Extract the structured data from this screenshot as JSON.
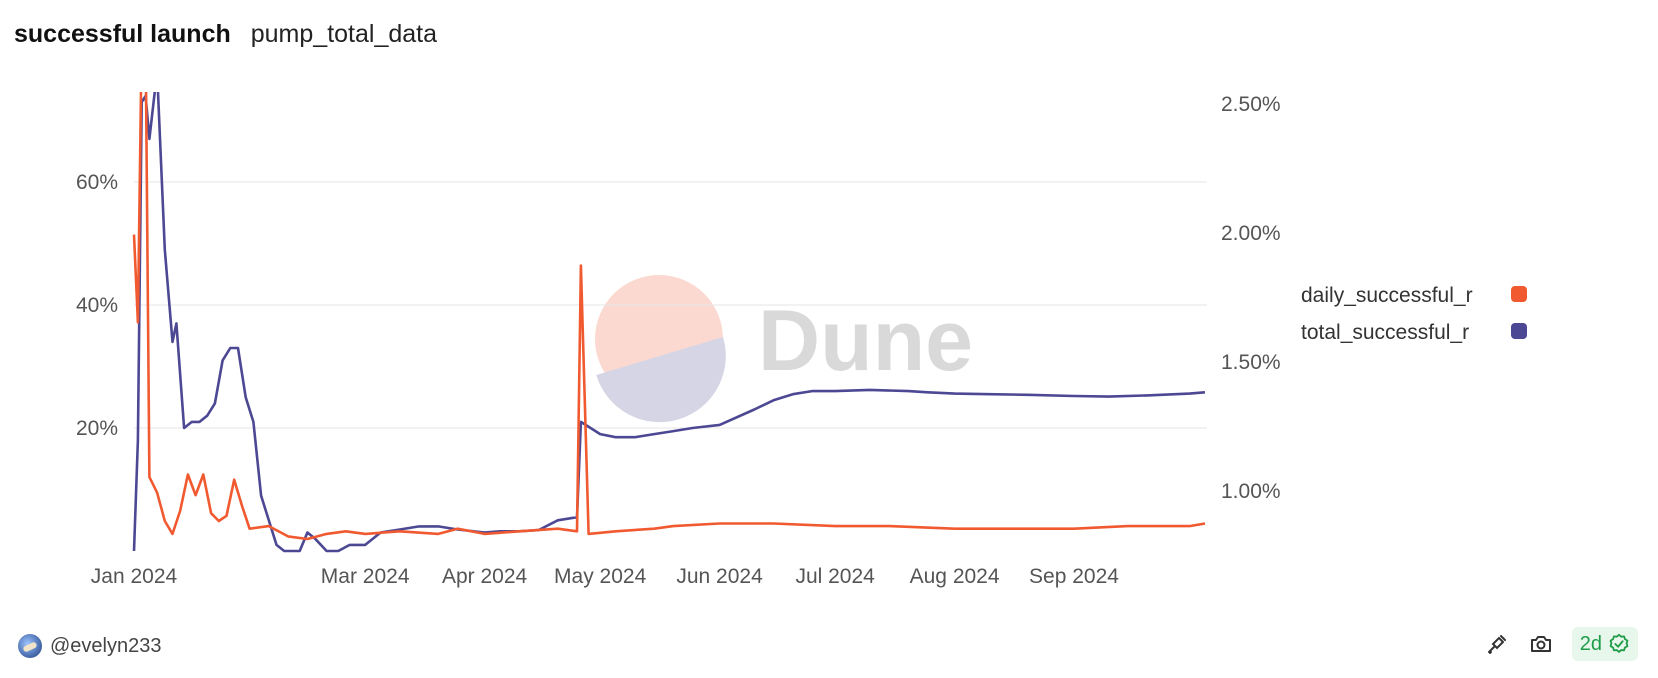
{
  "header": {
    "title": "successful launch",
    "subtitle": "pump_total_data"
  },
  "footer": {
    "username": "@evelyn233",
    "freshness_badge": "2d",
    "icons": [
      "chain-icon",
      "camera-icon",
      "verified-check-icon"
    ]
  },
  "watermark": "Dune",
  "chart_data": {
    "type": "line",
    "x_axis": {
      "type": "date",
      "range": [
        "2024-01-01",
        "2024-10-05"
      ],
      "tick_labels": [
        "Jan 2024",
        "Mar 2024",
        "Apr 2024",
        "May 2024",
        "Jun 2024",
        "Jul 2024",
        "Aug 2024",
        "Sep 2024"
      ],
      "tick_dates": [
        "2024-01-01",
        "2024-03-01",
        "2024-04-01",
        "2024-05-01",
        "2024-06-01",
        "2024-07-01",
        "2024-08-01",
        "2024-09-01"
      ]
    },
    "y_left": {
      "range": [
        0,
        0.7
      ],
      "ticks": [
        0.2,
        0.4,
        0.6
      ],
      "tick_labels": [
        "20%",
        "40%",
        "60%"
      ],
      "grid": true
    },
    "y_right": {
      "range": [
        0.0075,
        0.026
      ],
      "ticks": [
        0.01,
        0.015,
        0.02,
        0.025
      ],
      "tick_labels": [
        "1.00%",
        "1.50%",
        "2.00%",
        "2.50%"
      ]
    },
    "legend_position": "right",
    "series": [
      {
        "name": "daily_successful_r",
        "color": "#f15a30",
        "axis": "right",
        "points": [
          [
            "2024-01-01",
            0.0199
          ],
          [
            "2024-01-02",
            0.0165
          ],
          [
            "2024-01-03",
            0.0275
          ],
          [
            "2024-01-04",
            0.0275
          ],
          [
            "2024-01-05",
            0.0105
          ],
          [
            "2024-01-07",
            0.0099
          ],
          [
            "2024-01-09",
            0.0088
          ],
          [
            "2024-01-11",
            0.0083
          ],
          [
            "2024-01-13",
            0.0092
          ],
          [
            "2024-01-15",
            0.0106
          ],
          [
            "2024-01-17",
            0.0098
          ],
          [
            "2024-01-19",
            0.0106
          ],
          [
            "2024-01-21",
            0.0091
          ],
          [
            "2024-01-23",
            0.0088
          ],
          [
            "2024-01-25",
            0.009
          ],
          [
            "2024-01-27",
            0.0104
          ],
          [
            "2024-01-29",
            0.0094
          ],
          [
            "2024-01-31",
            0.0085
          ],
          [
            "2024-02-05",
            0.0086
          ],
          [
            "2024-02-10",
            0.0082
          ],
          [
            "2024-02-15",
            0.0081
          ],
          [
            "2024-02-20",
            0.0083
          ],
          [
            "2024-02-25",
            0.0084
          ],
          [
            "2024-03-01",
            0.0083
          ],
          [
            "2024-03-10",
            0.0084
          ],
          [
            "2024-03-20",
            0.0083
          ],
          [
            "2024-03-25",
            0.0085
          ],
          [
            "2024-04-01",
            0.0083
          ],
          [
            "2024-04-10",
            0.0084
          ],
          [
            "2024-04-20",
            0.0085
          ],
          [
            "2024-04-25",
            0.0084
          ],
          [
            "2024-04-26",
            0.0187
          ],
          [
            "2024-04-28",
            0.0083
          ],
          [
            "2024-05-05",
            0.0084
          ],
          [
            "2024-05-15",
            0.0085
          ],
          [
            "2024-05-20",
            0.0086
          ],
          [
            "2024-06-01",
            0.0087
          ],
          [
            "2024-06-15",
            0.0087
          ],
          [
            "2024-07-01",
            0.0086
          ],
          [
            "2024-07-15",
            0.0086
          ],
          [
            "2024-08-01",
            0.0085
          ],
          [
            "2024-08-15",
            0.0085
          ],
          [
            "2024-09-01",
            0.0085
          ],
          [
            "2024-09-15",
            0.0086
          ],
          [
            "2024-10-01",
            0.0086
          ],
          [
            "2024-10-05",
            0.0087
          ]
        ]
      },
      {
        "name": "total_successful_r",
        "color": "#4c4893",
        "axis": "left",
        "points": [
          [
            "2024-01-01",
            0.0
          ],
          [
            "2024-01-02",
            0.18
          ],
          [
            "2024-01-03",
            0.73
          ],
          [
            "2024-01-04",
            0.74
          ],
          [
            "2024-01-05",
            0.67
          ],
          [
            "2024-01-07",
            0.78
          ],
          [
            "2024-01-09",
            0.49
          ],
          [
            "2024-01-11",
            0.34
          ],
          [
            "2024-01-12",
            0.37
          ],
          [
            "2024-01-14",
            0.2
          ],
          [
            "2024-01-16",
            0.21
          ],
          [
            "2024-01-18",
            0.21
          ],
          [
            "2024-01-20",
            0.22
          ],
          [
            "2024-01-22",
            0.24
          ],
          [
            "2024-01-24",
            0.31
          ],
          [
            "2024-01-26",
            0.33
          ],
          [
            "2024-01-28",
            0.33
          ],
          [
            "2024-01-30",
            0.25
          ],
          [
            "2024-02-01",
            0.21
          ],
          [
            "2024-02-03",
            0.09
          ],
          [
            "2024-02-05",
            0.05
          ],
          [
            "2024-02-07",
            0.01
          ],
          [
            "2024-02-09",
            0.0
          ],
          [
            "2024-02-11",
            0.0
          ],
          [
            "2024-02-13",
            0.0
          ],
          [
            "2024-02-15",
            0.03
          ],
          [
            "2024-02-17",
            0.02
          ],
          [
            "2024-02-20",
            0.0
          ],
          [
            "2024-02-23",
            0.0
          ],
          [
            "2024-02-26",
            0.01
          ],
          [
            "2024-03-01",
            0.01
          ],
          [
            "2024-03-05",
            0.03
          ],
          [
            "2024-03-10",
            0.035
          ],
          [
            "2024-03-15",
            0.04
          ],
          [
            "2024-03-20",
            0.04
          ],
          [
            "2024-03-25",
            0.035
          ],
          [
            "2024-04-01",
            0.03
          ],
          [
            "2024-04-05",
            0.032
          ],
          [
            "2024-04-10",
            0.032
          ],
          [
            "2024-04-15",
            0.034
          ],
          [
            "2024-04-20",
            0.05
          ],
          [
            "2024-04-25",
            0.055
          ],
          [
            "2024-04-26",
            0.21
          ],
          [
            "2024-05-01",
            0.19
          ],
          [
            "2024-05-05",
            0.185
          ],
          [
            "2024-05-10",
            0.185
          ],
          [
            "2024-05-15",
            0.19
          ],
          [
            "2024-05-20",
            0.195
          ],
          [
            "2024-05-25",
            0.2
          ],
          [
            "2024-06-01",
            0.205
          ],
          [
            "2024-06-10",
            0.23
          ],
          [
            "2024-06-15",
            0.245
          ],
          [
            "2024-06-20",
            0.255
          ],
          [
            "2024-06-25",
            0.26
          ],
          [
            "2024-07-01",
            0.26
          ],
          [
            "2024-07-10",
            0.262
          ],
          [
            "2024-07-20",
            0.26
          ],
          [
            "2024-07-25",
            0.258
          ],
          [
            "2024-08-01",
            0.256
          ],
          [
            "2024-08-10",
            0.255
          ],
          [
            "2024-08-20",
            0.254
          ],
          [
            "2024-09-01",
            0.252
          ],
          [
            "2024-09-10",
            0.251
          ],
          [
            "2024-09-20",
            0.253
          ],
          [
            "2024-10-01",
            0.256
          ],
          [
            "2024-10-05",
            0.258
          ]
        ]
      }
    ]
  }
}
